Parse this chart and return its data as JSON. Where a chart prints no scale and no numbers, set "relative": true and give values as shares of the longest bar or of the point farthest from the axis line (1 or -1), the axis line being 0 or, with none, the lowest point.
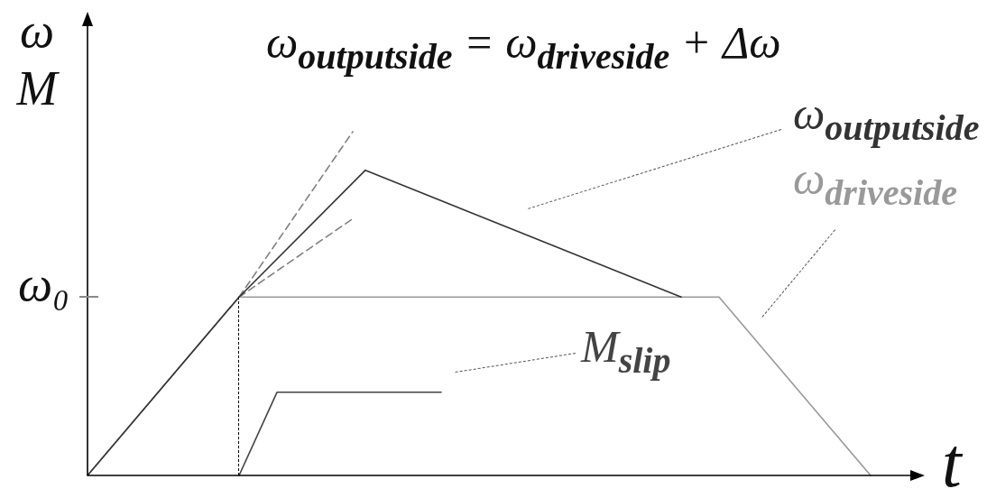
{
  "chart_data": {
    "type": "line",
    "relative": true,
    "marker": "none",
    "title": "ω$_{outputside}$ = ω$_{driveside}$ + Δω",
    "xlabel": "t",
    "ylabel": "ω\nM",
    "annotations": [
      "ω₀"
    ],
    "categories": [
      null,
      null,
      null,
      null,
      null,
      null,
      null,
      null,
      null,
      null,
      null,
      null,
      null,
      null,
      null,
      null,
      null,
      null,
      null,
      null,
      null,
      null,
      null,
      null,
      null,
      null,
      null,
      null,
      null,
      null,
      null,
      null,
      null,
      null,
      null,
      null,
      null,
      null,
      null,
      null,
      null,
      null,
      null,
      null,
      null,
      null,
      null,
      null,
      null,
      null,
      null,
      null,
      null,
      null,
      null,
      null,
      null,
      null,
      null,
      null,
      null,
      null,
      null,
      null,
      null,
      null,
      null
    ],
    "series": [
      {
        "name": "ω$_{outputside}$",
        "color": "#333333",
        "values": [
          0,
          null,
          null,
          null,
          null,
          null,
          null,
          null,
          null,
          null,
          null,
          null,
          0.519,
          null,
          null,
          null,
          null,
          null,
          null,
          null,
          null,
          null,
          0.888,
          null,
          null,
          null,
          null,
          null,
          null,
          null,
          null,
          null,
          null,
          null,
          null,
          null,
          null,
          null,
          null,
          null,
          null,
          null,
          null,
          null,
          null,
          null,
          null,
          0.519,
          null,
          null,
          null,
          null,
          null,
          null,
          null,
          null,
          null,
          null,
          null,
          null,
          null,
          null,
          null,
          null,
          null,
          null,
          null
        ]
      },
      {
        "name": "ω$_{driveside}$",
        "color": "#999999",
        "values": [
          0,
          null,
          null,
          null,
          null,
          null,
          null,
          null,
          null,
          null,
          null,
          null,
          0.519,
          null,
          null,
          null,
          null,
          null,
          null,
          null,
          null,
          null,
          null,
          null,
          null,
          null,
          null,
          null,
          null,
          null,
          null,
          null,
          null,
          null,
          null,
          null,
          null,
          null,
          null,
          null,
          null,
          null,
          null,
          null,
          null,
          null,
          null,
          null,
          null,
          null,
          0.519,
          null,
          null,
          null,
          null,
          null,
          null,
          null,
          null,
          null,
          null,
          null,
          0,
          null,
          null,
          null,
          null
        ]
      },
      {
        "name": "M$_{slip}$",
        "color": "#444444",
        "values": [
          null,
          null,
          null,
          null,
          null,
          null,
          null,
          null,
          null,
          null,
          null,
          null,
          0,
          null,
          null,
          0.242,
          null,
          null,
          null,
          null,
          null,
          null,
          null,
          null,
          null,
          null,
          null,
          null,
          0.242,
          null,
          null,
          null,
          null,
          null,
          null,
          null,
          null,
          null,
          null,
          null,
          null,
          null,
          null,
          null,
          null,
          null,
          null,
          null,
          null,
          null,
          null,
          null,
          null,
          null,
          null,
          null,
          null,
          null,
          null,
          null,
          null,
          null,
          null,
          null,
          null,
          null,
          null
        ]
      },
      {
        "color": "#808080",
        "line_style": "dashed",
        "values": [
          null,
          null,
          null,
          null,
          null,
          null,
          null,
          null,
          null,
          null,
          null,
          null,
          0.519,
          null,
          null,
          null,
          null,
          null,
          null,
          null,
          null,
          1,
          null,
          null,
          null,
          null,
          null,
          null,
          null,
          null,
          null,
          null,
          null,
          null,
          null,
          null,
          null,
          null,
          null,
          null,
          null,
          null,
          null,
          null,
          null,
          null,
          null,
          null,
          null,
          null,
          null,
          null,
          null,
          null,
          null,
          null,
          null,
          null,
          null,
          null,
          null,
          null,
          null,
          null,
          null,
          null,
          null
        ]
      },
      {
        "color": "#808080",
        "line_style": "dashed",
        "values": [
          null,
          null,
          null,
          null,
          null,
          null,
          null,
          null,
          null,
          null,
          null,
          null,
          0.519,
          null,
          null,
          null,
          null,
          null,
          null,
          null,
          null,
          0.747,
          null,
          null,
          null,
          null,
          null,
          null,
          null,
          null,
          null,
          null,
          null,
          null,
          null,
          null,
          null,
          null,
          null,
          null,
          null,
          null,
          null,
          null,
          null,
          null,
          null,
          null,
          null,
          null,
          null,
          null,
          null,
          null,
          null,
          null,
          null,
          null,
          null,
          null,
          null,
          null,
          null,
          null,
          null,
          null,
          null
        ]
      }
    ]
  }
}
